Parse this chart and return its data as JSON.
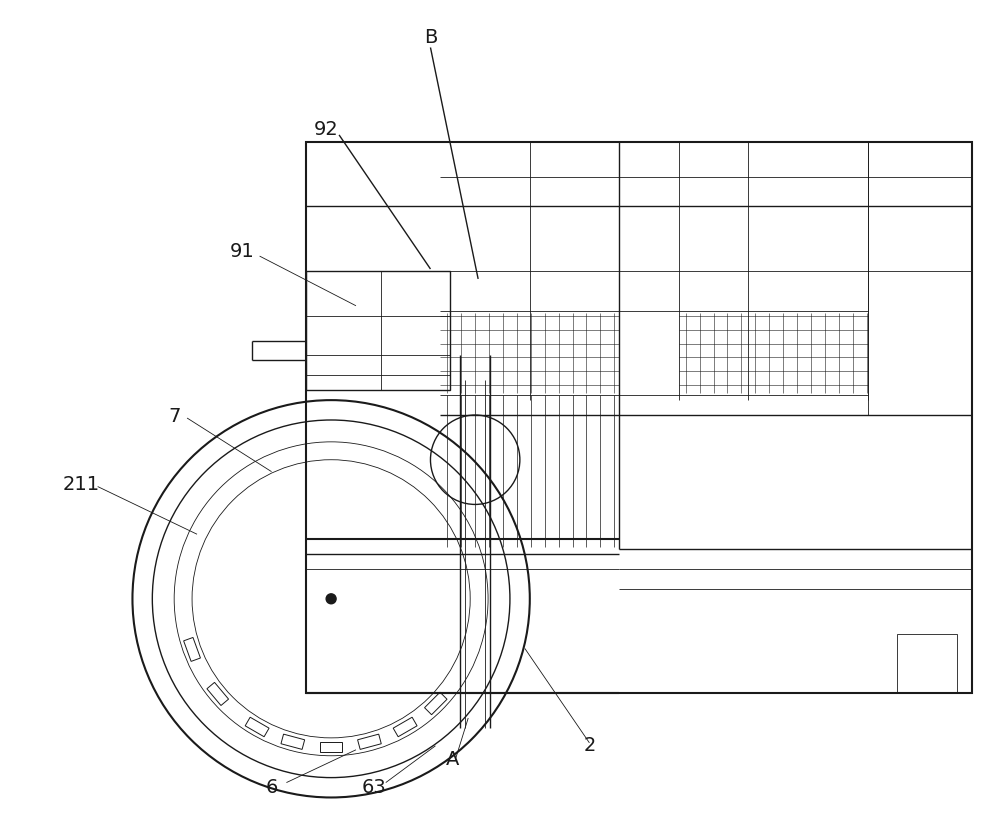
{
  "bg_color": "#ffffff",
  "line_color": "#1a1a1a",
  "fig_width": 10.0,
  "fig_height": 8.38,
  "dpi": 100,
  "label_fontsize": 14
}
